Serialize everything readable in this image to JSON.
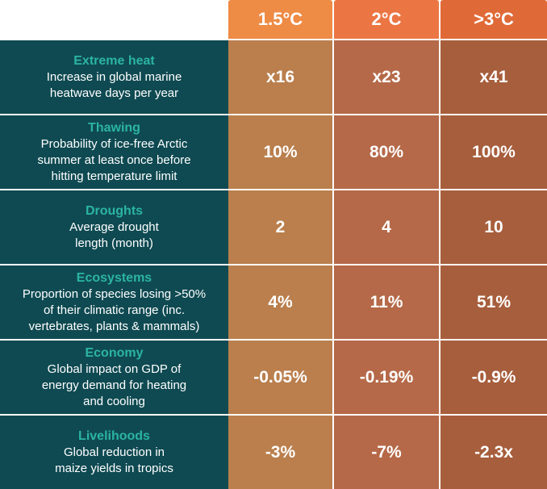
{
  "chart_data": {
    "type": "table",
    "columns": [
      {
        "label": "1.5°C",
        "header_color": "#ee8b45",
        "cell_color": "#ba7f4d"
      },
      {
        "label": "2°C",
        "header_color": "#ec7643",
        "cell_color": "#b56948"
      },
      {
        "label": ">3°C",
        "header_color": "#e06a37",
        "cell_color": "#a75e3c"
      }
    ],
    "rows": [
      {
        "title": "Extreme heat",
        "description": "Increase in global marine\nheatwave days per year",
        "values": [
          "x16",
          "x23",
          "x41"
        ]
      },
      {
        "title": "Thawing",
        "description": "Probability of ice-free Arctic\nsummer at least once before\nhitting temperature limit",
        "values": [
          "10%",
          "80%",
          "100%"
        ]
      },
      {
        "title": "Droughts",
        "description": "Average drought\nlength (month)",
        "values": [
          "2",
          "4",
          "10"
        ]
      },
      {
        "title": "Ecosystems",
        "description": "Proportion of species losing >50%\nof their climatic range (inc.\nvertebrates, plants & mammals)",
        "values": [
          "4%",
          "11%",
          "51%"
        ]
      },
      {
        "title": "Economy",
        "description": "Global impact on GDP of\nenergy demand for heating\nand cooling",
        "values": [
          "-0.05%",
          "-0.19%",
          "-0.9%"
        ]
      },
      {
        "title": "Livelihoods",
        "description": "Global reduction in\nmaize yields in tropics",
        "values": [
          "-3%",
          "-7%",
          "-2.3x"
        ]
      }
    ]
  }
}
